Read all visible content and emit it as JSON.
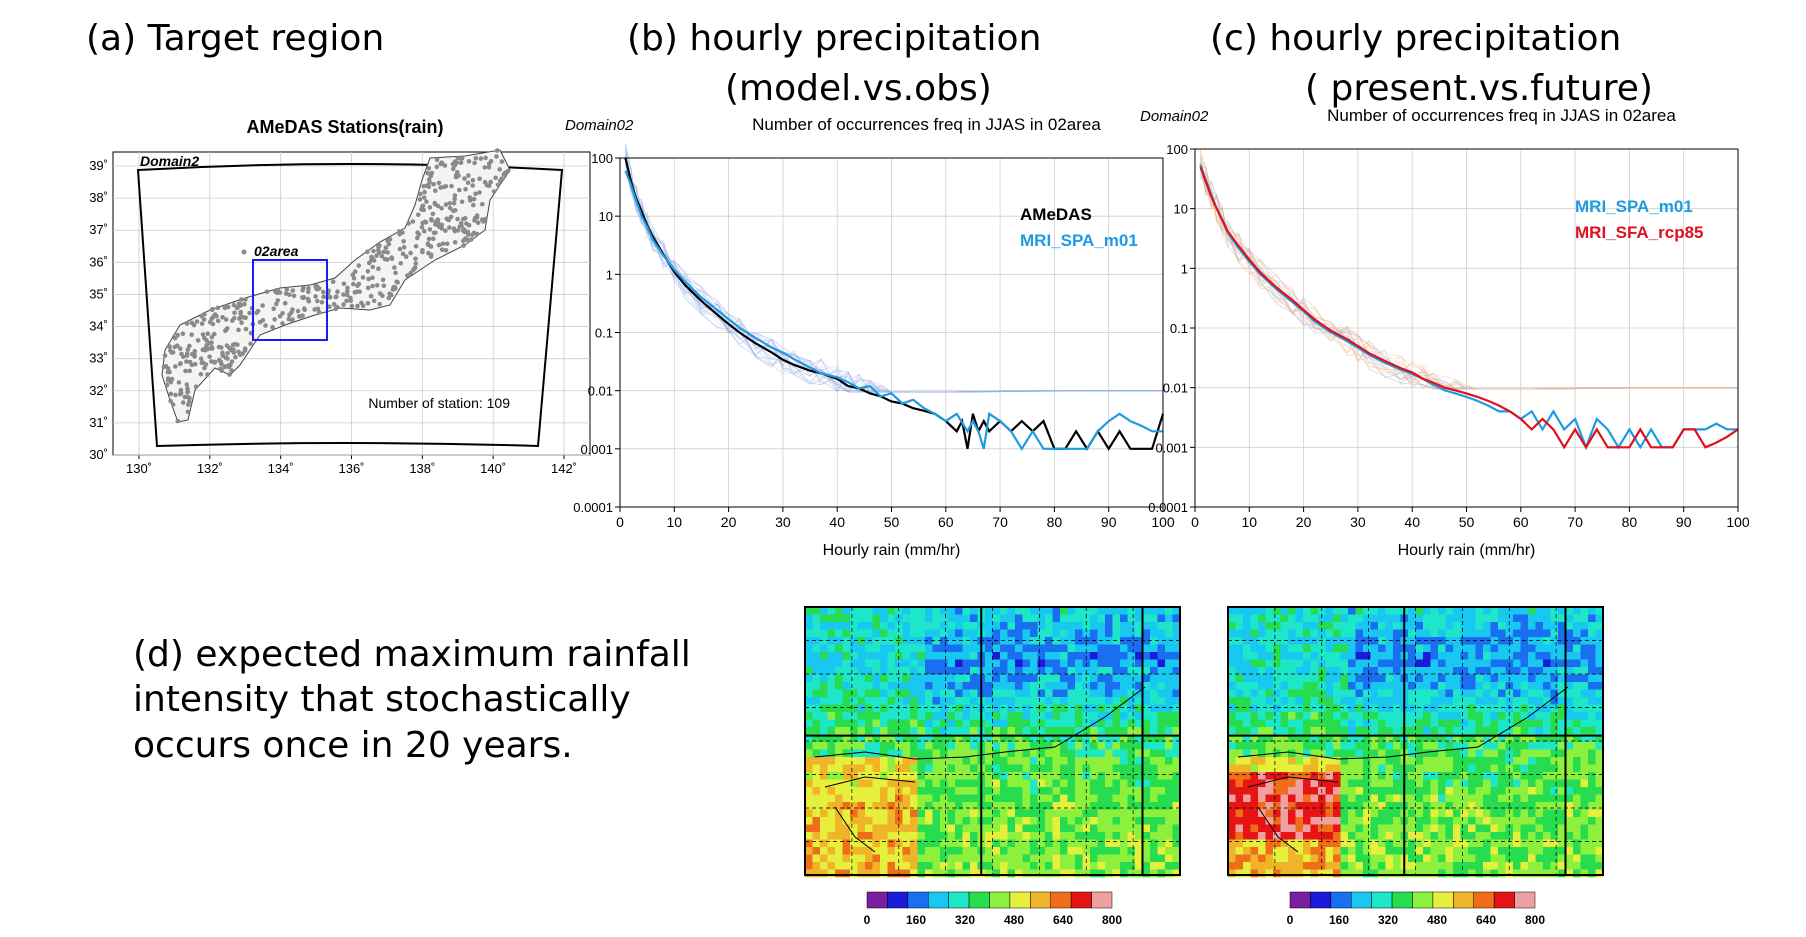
{
  "captions": {
    "a": "(a) Target region",
    "b_line1": "(b) hourly precipitation",
    "b_line2": "(model.vs.obs)",
    "c_line1": "(c) hourly precipitation",
    "c_line2": "( present.vs.future)",
    "d_line1": "(d) expected maximum rainfall",
    "d_line2": "intensity that stochastically",
    "d_line3": "occurs once in 20 years."
  },
  "map": {
    "title": "AMeDAS Stations(rain)",
    "domain_label": "Domain2",
    "area_label": "02area",
    "station_text": "Number of station: 109",
    "x_ticks": [
      "130˚",
      "132˚",
      "134˚",
      "136˚",
      "138˚",
      "140˚",
      "142˚"
    ],
    "y_ticks": [
      "39˚",
      "38˚",
      "37˚",
      "36˚",
      "35˚",
      "34˚",
      "33˚",
      "32˚",
      "31˚",
      "30˚"
    ],
    "area_color": "#1a1aff"
  },
  "chart_data": [
    {
      "type": "line",
      "panel": "b",
      "corner_label": "Domain02",
      "title": "Number of occurrences freq in JJAS in 02area",
      "xlabel": "Hourly rain (mm/hr)",
      "ylabel": "",
      "y_scale": "log",
      "xlim": [
        0,
        100
      ],
      "ylim": [
        0.0001,
        100
      ],
      "x_ticks": [
        "0",
        "10",
        "20",
        "30",
        "40",
        "50",
        "60",
        "70",
        "80",
        "90",
        "100"
      ],
      "y_ticks": [
        "100",
        "10",
        "1",
        "0.1",
        "0.01",
        "0.001",
        "0.0001"
      ],
      "grid": true,
      "legend_position": "top-right",
      "series": [
        {
          "name": "AMeDAS",
          "color": "#000000",
          "x": [
            1,
            2,
            3,
            4,
            5,
            6,
            8,
            10,
            12,
            15,
            18,
            20,
            22,
            25,
            28,
            30,
            32,
            35,
            37,
            40,
            42,
            44,
            46,
            48,
            50,
            52,
            54,
            56,
            58,
            60,
            62,
            63,
            64,
            65,
            66,
            67,
            68,
            70,
            72,
            74,
            76,
            78,
            80,
            82,
            84,
            86,
            88,
            90,
            92,
            94,
            96,
            98,
            100
          ],
          "y": [
            100,
            40,
            20,
            12,
            7,
            4.5,
            2.2,
            1.1,
            0.65,
            0.35,
            0.2,
            0.14,
            0.1,
            0.065,
            0.045,
            0.034,
            0.028,
            0.022,
            0.02,
            0.016,
            0.012,
            0.011,
            0.009,
            0.008,
            0.0065,
            0.006,
            0.005,
            0.0045,
            0.004,
            0.003,
            0.002,
            0.003,
            0.001,
            0.004,
            0.002,
            0.003,
            0.002,
            0.003,
            0.002,
            0.003,
            0.002,
            0.003,
            0.001,
            0.001,
            0.002,
            0.001,
            0.002,
            0.001,
            0.002,
            0.001,
            0.001,
            0.001,
            0.004
          ]
        },
        {
          "name": "MRI_SPA_m01",
          "color": "#1e9be0",
          "x": [
            1,
            2,
            3,
            4,
            5,
            6,
            8,
            10,
            12,
            15,
            18,
            20,
            22,
            25,
            28,
            30,
            32,
            35,
            37,
            40,
            42,
            44,
            46,
            48,
            50,
            52,
            54,
            56,
            58,
            60,
            62,
            64,
            65,
            66,
            67,
            68,
            70,
            72,
            74,
            76,
            78,
            80,
            82,
            84,
            86,
            88,
            90,
            92,
            94,
            96,
            98,
            100
          ],
          "y": [
            60,
            35,
            18,
            10,
            6.5,
            4,
            2.1,
            1.2,
            0.75,
            0.4,
            0.24,
            0.17,
            0.12,
            0.08,
            0.055,
            0.045,
            0.035,
            0.025,
            0.02,
            0.017,
            0.014,
            0.011,
            0.012,
            0.008,
            0.009,
            0.006,
            0.007,
            0.005,
            0.004,
            0.003,
            0.004,
            0.002,
            0.003,
            0.002,
            0.001,
            0.004,
            0.003,
            0.002,
            0.001,
            0.002,
            0.001,
            0.001,
            0.001,
            0.001,
            0.001,
            0.002,
            0.003,
            0.004,
            0.003,
            0.0025,
            0.002,
            0.002
          ]
        }
      ]
    },
    {
      "type": "line",
      "panel": "c",
      "corner_label": "Domain02",
      "title": "Number of occurrences freq in JJAS in 02area",
      "xlabel": "Hourly rain (mm/hr)",
      "ylabel": "",
      "y_scale": "log",
      "xlim": [
        0,
        100
      ],
      "ylim": [
        0.0001,
        100
      ],
      "x_ticks": [
        "0",
        "10",
        "20",
        "30",
        "40",
        "50",
        "60",
        "70",
        "80",
        "90",
        "100"
      ],
      "y_ticks": [
        "100",
        "10",
        "1",
        "0.1",
        "0.01",
        "0.001",
        "0.0001"
      ],
      "grid": true,
      "legend_position": "top-right",
      "series": [
        {
          "name": "MRI_SPA_m01",
          "color": "#1e9be0",
          "x": [
            1,
            2,
            3,
            4,
            5,
            6,
            8,
            10,
            12,
            15,
            18,
            20,
            22,
            25,
            28,
            30,
            32,
            35,
            38,
            40,
            42,
            44,
            46,
            48,
            50,
            52,
            54,
            56,
            58,
            60,
            62,
            64,
            66,
            68,
            70,
            72,
            74,
            76,
            78,
            80,
            82,
            84,
            86,
            88,
            90,
            92,
            94,
            96,
            98,
            100
          ],
          "y": [
            55,
            30,
            17,
            10,
            6.5,
            4,
            2.2,
            1.3,
            0.8,
            0.45,
            0.27,
            0.19,
            0.13,
            0.085,
            0.06,
            0.047,
            0.036,
            0.026,
            0.02,
            0.017,
            0.014,
            0.011,
            0.009,
            0.008,
            0.007,
            0.006,
            0.005,
            0.004,
            0.004,
            0.003,
            0.004,
            0.002,
            0.004,
            0.002,
            0.003,
            0.001,
            0.003,
            0.002,
            0.001,
            0.002,
            0.001,
            0.002,
            0.001,
            0.001,
            0.002,
            0.002,
            0.002,
            0.0025,
            0.002,
            0.002
          ]
        },
        {
          "name": "MRI_SFA_rcp85",
          "color": "#e0101e",
          "x": [
            1,
            2,
            3,
            4,
            5,
            6,
            8,
            10,
            12,
            15,
            18,
            20,
            22,
            25,
            28,
            30,
            32,
            35,
            38,
            40,
            42,
            44,
            46,
            48,
            50,
            52,
            54,
            56,
            58,
            60,
            62,
            64,
            66,
            68,
            70,
            72,
            74,
            76,
            78,
            80,
            82,
            84,
            86,
            88,
            90,
            92,
            94,
            96,
            98,
            100
          ],
          "y": [
            50,
            28,
            16,
            10,
            6.5,
            4.2,
            2.4,
            1.4,
            0.85,
            0.48,
            0.29,
            0.2,
            0.14,
            0.09,
            0.065,
            0.05,
            0.038,
            0.028,
            0.021,
            0.018,
            0.014,
            0.012,
            0.01,
            0.009,
            0.008,
            0.007,
            0.006,
            0.005,
            0.004,
            0.003,
            0.002,
            0.003,
            0.002,
            0.001,
            0.002,
            0.001,
            0.002,
            0.001,
            0.001,
            0.001,
            0.002,
            0.001,
            0.001,
            0.001,
            0.002,
            0.002,
            0.001,
            0.0012,
            0.0015,
            0.002
          ]
        }
      ]
    },
    {
      "type": "heatmap",
      "panel": "d-left",
      "colorbar_ticks": [
        "0",
        "160",
        "320",
        "480",
        "640",
        "800"
      ],
      "colorbar_colors": [
        "#7a1fa0",
        "#1a1ad8",
        "#1a6ef0",
        "#19c8f0",
        "#1ee6c8",
        "#28dc50",
        "#8cf03c",
        "#e6f03c",
        "#f0b428",
        "#f06e19",
        "#e61414",
        "#f0a0a0"
      ]
    },
    {
      "type": "heatmap",
      "panel": "d-right",
      "colorbar_ticks": [
        "0",
        "160",
        "320",
        "480",
        "640",
        "800"
      ],
      "colorbar_colors": [
        "#7a1fa0",
        "#1a1ad8",
        "#1a6ef0",
        "#19c8f0",
        "#1ee6c8",
        "#28dc50",
        "#8cf03c",
        "#e6f03c",
        "#f0b428",
        "#f06e19",
        "#e61414",
        "#f0a0a0"
      ]
    }
  ]
}
